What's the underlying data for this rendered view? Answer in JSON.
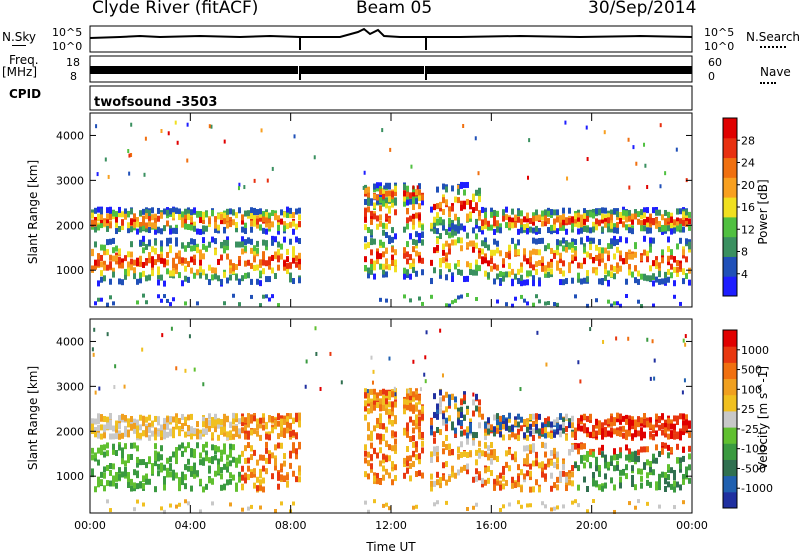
{
  "header": {
    "site": "Clyde River (fitACF)",
    "beam": "Beam 05",
    "date": "30/Sep/2014"
  },
  "side_labels": {
    "nsky": "N.Sky",
    "freq": "Freq.",
    "freq_unit": "[MHz]",
    "cpid": "CPID",
    "nsearch": "N.Search",
    "nave": "Nave"
  },
  "cpid_value": "twofsound  -3503",
  "axis_labels": {
    "nsky_top": "10^5",
    "nsky_bottom": "10^0",
    "freq_top": "18",
    "freq_bottom": "8",
    "nsearch_top": "10^5",
    "nsearch_bottom": "10^0",
    "nave_top": "60",
    "nave_bottom": "0"
  },
  "chart_data": [
    {
      "type": "heatmap",
      "title": "",
      "xlabel": "Time UT",
      "ylabel": "Slant Range [km]",
      "x_ticks": [
        "00:00",
        "04:00",
        "08:00",
        "12:00",
        "16:00",
        "20:00",
        "00:00"
      ],
      "y_ticks": [
        1000,
        2000,
        3000,
        4000
      ],
      "ylim": [
        180,
        4500
      ],
      "colorbar": {
        "label": "Power [dB]",
        "ticks": [
          4,
          8,
          12,
          16,
          20,
          24,
          28
        ],
        "colors": [
          "#1e1eff",
          "#2050b8",
          "#3a9060",
          "#50c040",
          "#f0e020",
          "#f8a020",
          "#f07010",
          "#e83010",
          "#e00000"
        ]
      }
    },
    {
      "type": "heatmap",
      "title": "",
      "xlabel": "Time UT",
      "ylabel": "Slant Range [km]",
      "x_ticks": [
        "00:00",
        "04:00",
        "08:00",
        "12:00",
        "16:00",
        "20:00",
        "00:00"
      ],
      "y_ticks": [
        1000,
        2000,
        3000,
        4000
      ],
      "ylim": [
        180,
        4500
      ],
      "colorbar": {
        "label": "Velocity [m s^-1]",
        "ticks": [
          "1000",
          "500",
          "100",
          "25",
          "-25",
          "-100",
          "-500",
          "-1000"
        ],
        "colors": [
          "#2030a0",
          "#2060b0",
          "#307050",
          "#3a9a40",
          "#60c030",
          "#c8c8c8",
          "#f0c020",
          "#f0a020",
          "#f07010",
          "#e83810",
          "#e00000"
        ]
      }
    }
  ]
}
